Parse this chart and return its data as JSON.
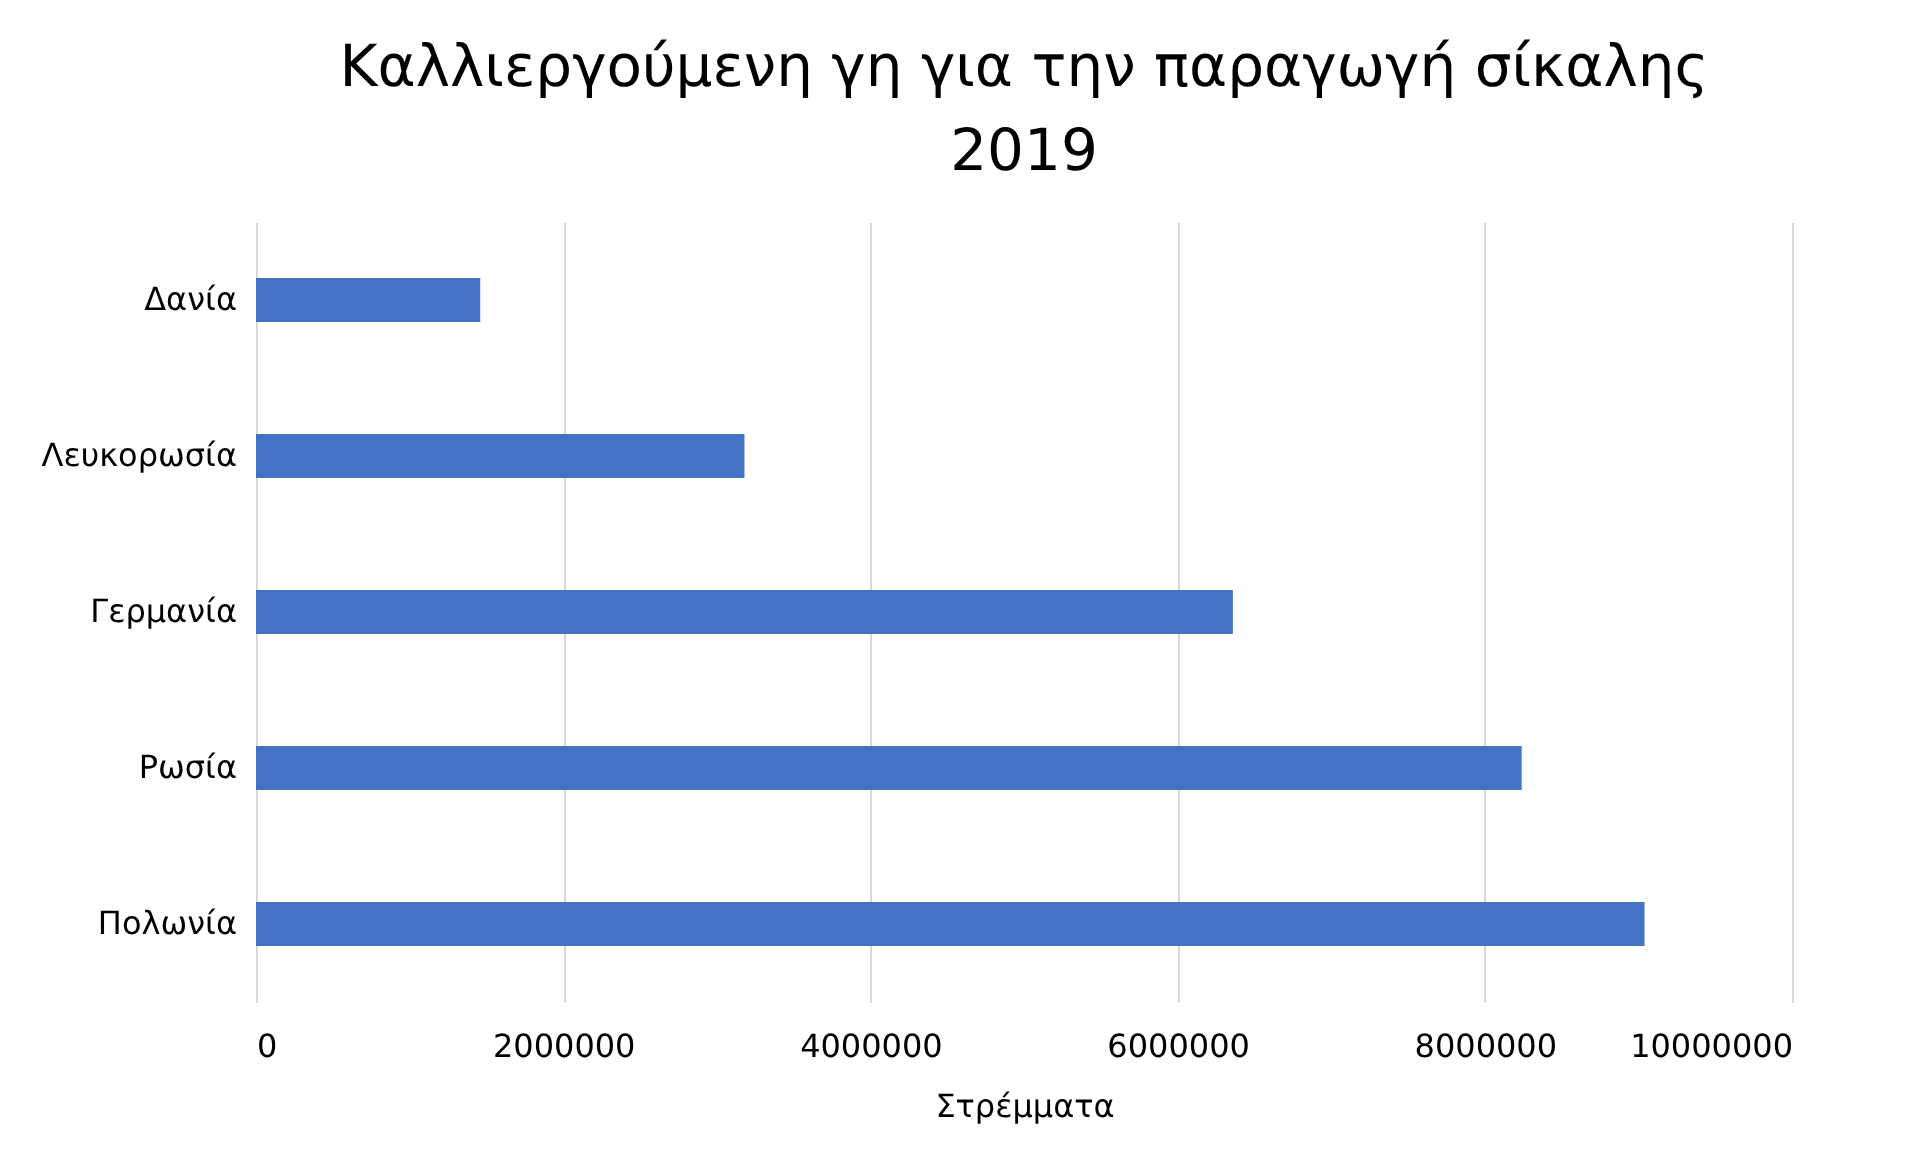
{
  "chart_data": {
    "type": "bar",
    "orientation": "horizontal",
    "title": [
      "Καλλιεργούμενη γη για την παραγωγή σίκαλης",
      "2019"
    ],
    "xlabel": "Στρέμματα",
    "categories": [
      "Δανία",
      "Λευκορωσία",
      "Γερμανία",
      "Ρωσία",
      "Πολωνία"
    ],
    "values": [
      1460000,
      3180000,
      6360000,
      8240000,
      9040000
    ],
    "color": "#4472c4",
    "xlim": [
      0,
      10000000
    ],
    "xticks": [
      0,
      2000000,
      4000000,
      6000000,
      8000000,
      10000000
    ],
    "grid": "x"
  }
}
